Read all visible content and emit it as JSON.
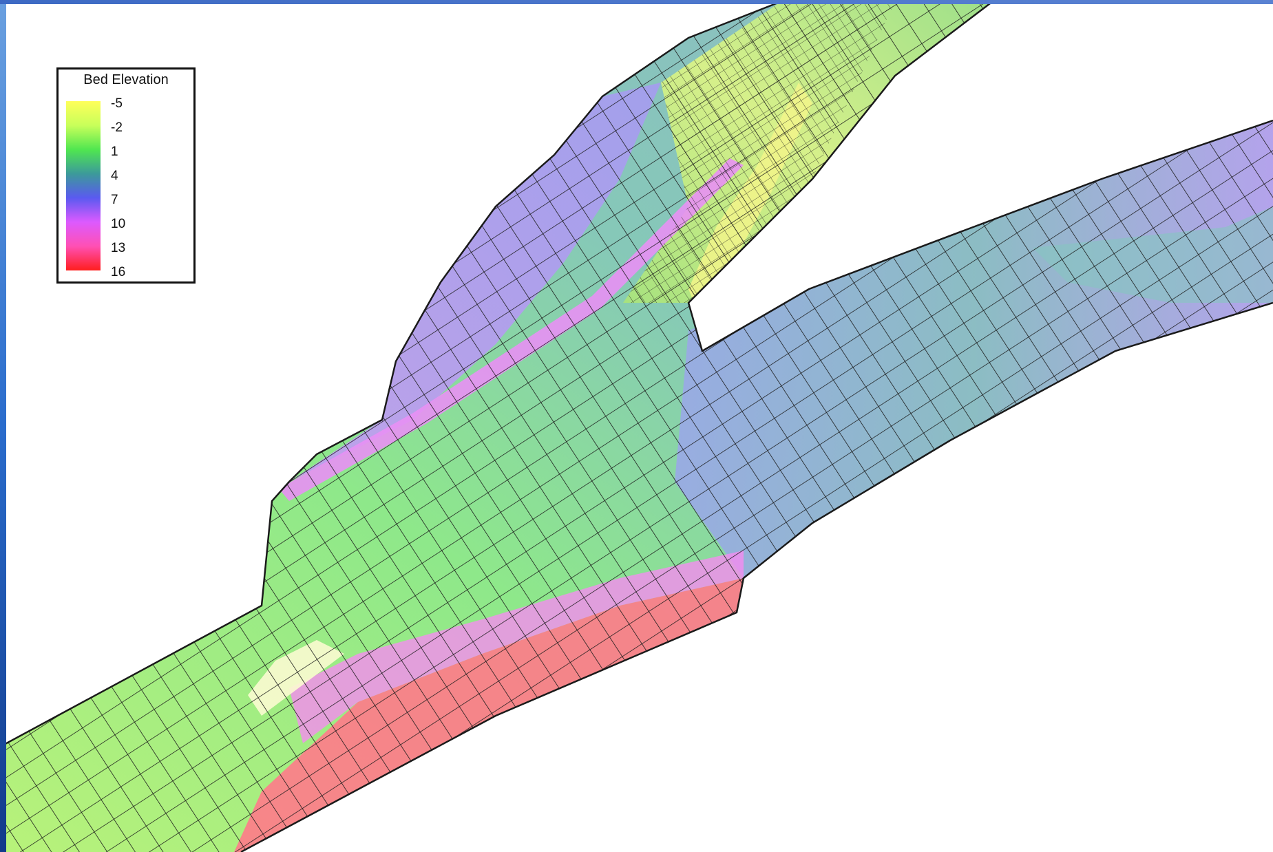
{
  "legend": {
    "title": "Bed Elevation",
    "entries": [
      {
        "label": "-5",
        "color": "#ffff5a"
      },
      {
        "label": "-2",
        "color": "#c8ff5a"
      },
      {
        "label": "1",
        "color": "#50e650"
      },
      {
        "label": "4",
        "color": "#3c9a9a"
      },
      {
        "label": "7",
        "color": "#5a5af0"
      },
      {
        "label": "10",
        "color": "#dc5aff"
      },
      {
        "label": "13",
        "color": "#ff50b4"
      },
      {
        "label": "16",
        "color": "#ff1e1e"
      }
    ]
  },
  "colors": {
    "frame_left": "#1f5fbf",
    "frame_top": "#4a72c8",
    "mesh_line": "#1a1a1a",
    "map_background": "#ffffff"
  }
}
